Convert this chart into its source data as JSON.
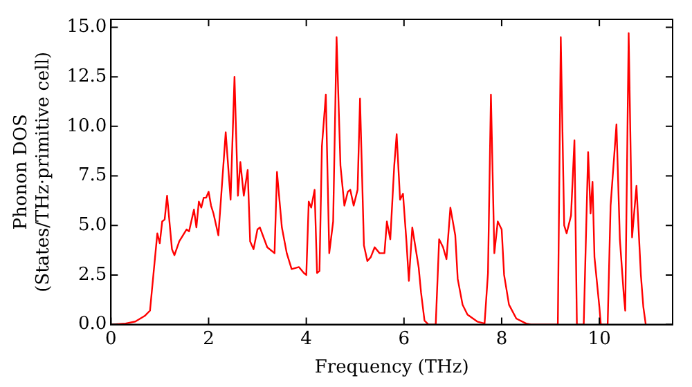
{
  "chart_data": {
    "type": "line",
    "xlabel": "Frequency (THz)",
    "ylabel": "Phonon DOS\n(States/THz·primitive cell)",
    "xlim": [
      0,
      11.5
    ],
    "xticks": [
      0,
      2,
      4,
      6,
      8,
      10
    ],
    "ylim": [
      0,
      15.4
    ],
    "yticks": [
      {
        "value": 0,
        "label": "0.0"
      },
      2.5,
      {
        "value": 5,
        "label": "5.0"
      },
      7.5,
      {
        "value": 10,
        "label": "10.0"
      },
      12.5,
      {
        "value": 15,
        "label": "15.0"
      }
    ],
    "grid": false,
    "legend": false,
    "marker": "none",
    "line_style": "solid",
    "series": [
      {
        "color": "#ff0000",
        "x": [
          0,
          0.3,
          0.5,
          0.7,
          0.8,
          0.95,
          1.0,
          1.05,
          1.1,
          1.15,
          1.25,
          1.3,
          1.4,
          1.55,
          1.6,
          1.7,
          1.75,
          1.8,
          1.85,
          1.9,
          1.95,
          2.0,
          2.05,
          2.1,
          2.2,
          2.35,
          2.45,
          2.53,
          2.6,
          2.65,
          2.72,
          2.8,
          2.85,
          2.92,
          3.0,
          3.05,
          3.2,
          3.35,
          3.4,
          3.5,
          3.6,
          3.7,
          3.85,
          3.95,
          4.0,
          4.05,
          4.1,
          4.17,
          4.22,
          4.27,
          4.32,
          4.4,
          4.47,
          4.55,
          4.62,
          4.7,
          4.78,
          4.85,
          4.9,
          4.97,
          5.05,
          5.1,
          5.18,
          5.25,
          5.32,
          5.4,
          5.5,
          5.6,
          5.65,
          5.72,
          5.8,
          5.85,
          5.92,
          5.98,
          6.05,
          6.1,
          6.17,
          6.3,
          6.35,
          6.42,
          6.5,
          6.65,
          6.72,
          6.8,
          6.87,
          6.95,
          7.05,
          7.1,
          7.2,
          7.3,
          7.5,
          7.65,
          7.72,
          7.78,
          7.85,
          7.92,
          8.0,
          8.05,
          8.15,
          8.3,
          8.5,
          8.6,
          9.15,
          9.21,
          9.28,
          9.33,
          9.42,
          9.49,
          9.54,
          9.68,
          9.77,
          9.82,
          9.86,
          9.9,
          10.0,
          10.03,
          10.17,
          10.23,
          10.35,
          10.42,
          10.5,
          10.53,
          10.6,
          10.67,
          10.76,
          10.85,
          10.9,
          10.95
        ],
        "values": [
          0,
          0.05,
          0.15,
          0.45,
          0.7,
          4.6,
          4.1,
          5.2,
          5.3,
          6.5,
          3.8,
          3.5,
          4.2,
          4.8,
          4.7,
          5.8,
          4.9,
          6.2,
          5.9,
          6.4,
          6.4,
          6.7,
          6.0,
          5.6,
          4.5,
          9.7,
          6.3,
          12.5,
          6.5,
          8.2,
          6.5,
          7.8,
          4.2,
          3.8,
          4.8,
          4.9,
          3.9,
          3.6,
          7.7,
          4.9,
          3.6,
          2.8,
          2.9,
          2.6,
          2.5,
          6.2,
          5.9,
          6.8,
          2.6,
          2.7,
          9.0,
          11.6,
          3.6,
          5.2,
          14.5,
          8.0,
          6.0,
          6.7,
          6.8,
          6.0,
          6.8,
          11.4,
          4.0,
          3.2,
          3.4,
          3.9,
          3.6,
          3.6,
          5.2,
          4.3,
          8.0,
          9.6,
          6.3,
          6.6,
          4.2,
          2.2,
          4.9,
          2.9,
          1.6,
          0.2,
          0,
          0,
          4.3,
          3.9,
          3.3,
          5.9,
          4.5,
          2.3,
          1.0,
          0.5,
          0.15,
          0.05,
          2.6,
          11.6,
          3.6,
          5.2,
          4.8,
          2.5,
          1.0,
          0.3,
          0.05,
          0,
          0,
          14.5,
          5.0,
          4.6,
          5.5,
          9.3,
          0,
          0,
          8.7,
          5.6,
          7.2,
          3.4,
          0.9,
          0,
          0,
          6.0,
          10.1,
          4.3,
          1.5,
          0.7,
          14.7,
          4.4,
          7.0,
          2.5,
          0.9,
          0
        ]
      }
    ]
  }
}
